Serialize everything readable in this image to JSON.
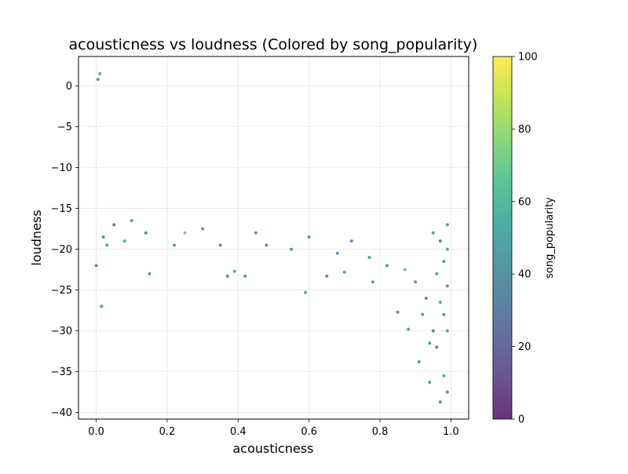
{
  "chart_data": {
    "type": "scatter",
    "title": "acousticness vs loudness (Colored by song_popularity)",
    "xlabel": "acousticness",
    "ylabel": "loudness",
    "xlim": [
      -0.05,
      1.05
    ],
    "ylim": [
      -40.8,
      3.6
    ],
    "xticks": [
      0.0,
      0.2,
      0.4,
      0.6,
      0.8,
      1.0
    ],
    "xtick_labels": [
      "0.0",
      "0.2",
      "0.4",
      "0.6",
      "0.8",
      "1.0"
    ],
    "yticks": [
      0,
      -5,
      -10,
      -15,
      -20,
      -25,
      -30,
      -35,
      -40
    ],
    "ytick_labels": [
      "0",
      "−5",
      "−10",
      "−15",
      "−20",
      "−25",
      "−30",
      "−35",
      "−40"
    ],
    "grid": true,
    "colorbar": {
      "label": "song_popularity",
      "range": [
        0,
        100
      ],
      "ticks": [
        0,
        20,
        40,
        60,
        80,
        100
      ],
      "tick_labels": [
        "0",
        "20",
        "40",
        "60",
        "80",
        "100"
      ],
      "colormap": "viridis"
    },
    "colormap_stops": [
      "#440154",
      "#482878",
      "#3e4989",
      "#31688e",
      "#26828e",
      "#1f9e89",
      "#35b779",
      "#6ece58",
      "#b5de2b",
      "#fde725"
    ],
    "point_alpha": 0.8,
    "points": [
      [
        0.01,
        1.5,
        55
      ],
      [
        0.005,
        0.8,
        45
      ],
      [
        0.0,
        -22.0,
        40
      ],
      [
        0.015,
        -27.0,
        50
      ],
      [
        0.15,
        -23.0,
        45
      ],
      [
        0.37,
        -23.3,
        40
      ],
      [
        0.39,
        -22.7,
        55
      ],
      [
        0.42,
        -23.3,
        45
      ],
      [
        0.59,
        -25.3,
        50
      ],
      [
        0.65,
        -23.3,
        45
      ],
      [
        0.7,
        -22.8,
        50
      ],
      [
        0.78,
        -24.0,
        45
      ],
      [
        0.85,
        -27.7,
        40
      ],
      [
        0.88,
        -29.8,
        50
      ],
      [
        0.91,
        -33.8,
        45
      ],
      [
        0.94,
        -36.3,
        50
      ],
      [
        0.97,
        -38.7,
        40
      ],
      [
        0.99,
        -37.5,
        45
      ],
      [
        0.98,
        -35.5,
        55
      ],
      [
        0.96,
        -32.0,
        35
      ],
      [
        0.99,
        -30.0,
        50
      ],
      [
        0.98,
        -28.0,
        45
      ],
      [
        0.97,
        -26.5,
        55
      ],
      [
        0.99,
        -24.5,
        40
      ],
      [
        0.96,
        -23.0,
        50
      ],
      [
        0.98,
        -21.5,
        45
      ],
      [
        0.99,
        -20.0,
        55
      ],
      [
        0.97,
        -19.0,
        35
      ],
      [
        0.95,
        -18.0,
        50
      ],
      [
        0.99,
        -17.0,
        45
      ],
      [
        0.02,
        -18.5,
        40
      ],
      [
        0.03,
        -19.5,
        50
      ],
      [
        0.05,
        -17.0,
        35
      ],
      [
        0.08,
        -19.0,
        55
      ],
      [
        0.1,
        -16.5,
        45
      ],
      [
        0.14,
        -18.0,
        40
      ],
      [
        0.22,
        -19.5,
        50
      ],
      [
        0.25,
        -18.0,
        75
      ],
      [
        0.3,
        -17.5,
        45
      ],
      [
        0.35,
        -19.5,
        40
      ],
      [
        0.45,
        -18.0,
        50
      ],
      [
        0.48,
        -19.5,
        35
      ],
      [
        0.55,
        -20.0,
        45
      ],
      [
        0.6,
        -18.5,
        50
      ],
      [
        0.68,
        -20.5,
        45
      ],
      [
        0.72,
        -19.0,
        40
      ],
      [
        0.77,
        -21.0,
        50
      ],
      [
        0.82,
        -22.0,
        45
      ],
      [
        0.87,
        -22.5,
        70
      ],
      [
        0.9,
        -24.0,
        45
      ],
      [
        0.93,
        -26.0,
        40
      ],
      [
        0.92,
        -28.0,
        50
      ],
      [
        0.95,
        -30.0,
        35
      ],
      [
        0.94,
        -31.5,
        45
      ]
    ]
  }
}
